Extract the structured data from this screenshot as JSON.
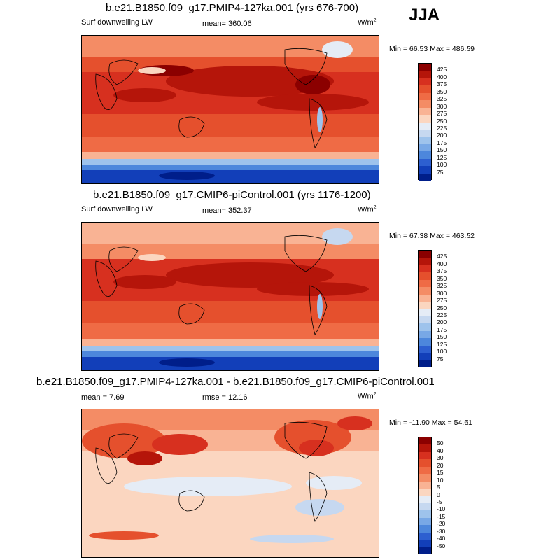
{
  "season": "JJA",
  "panels": [
    {
      "title": "b.e21.B1850.f09_g17.PMIP4-127ka.001 (yrs 676-700)",
      "variable": "Surf downwelling LW",
      "stat_text": "mean= 360.06",
      "units": "W/m",
      "units_sup": "2",
      "minmax": "Min =  66.53 Max = 486.59",
      "kind": "abs"
    },
    {
      "title": "b.e21.B1850.f09_g17.CMIP6-piControl.001 (yrs 1176-1200)",
      "variable": "Surf downwelling LW",
      "stat_text": "mean= 352.37",
      "units": "W/m",
      "units_sup": "2",
      "minmax": "Min =  67.38 Max = 463.52",
      "kind": "abs"
    },
    {
      "title": "b.e21.B1850.f09_g17.PMIP4-127ka.001 - b.e21.B1850.f09_g17.CMIP6-piControl.001",
      "mean_text": "mean =   7.69",
      "rmse_text": "rmse =  12.16",
      "units": "W/m",
      "units_sup": "2",
      "minmax": "Min = -11.90 Max =  54.61",
      "kind": "diff"
    }
  ],
  "colorbar_abs": {
    "labels": [
      "425",
      "400",
      "375",
      "350",
      "325",
      "300",
      "275",
      "250",
      "225",
      "200",
      "175",
      "150",
      "125",
      "100",
      "75"
    ],
    "colors": [
      "#8b0000",
      "#b5150a",
      "#d7301f",
      "#e5502d",
      "#ef6b45",
      "#f48c65",
      "#f9b394",
      "#fbd6c0",
      "#e5ecf6",
      "#c6d8f0",
      "#9ec3ec",
      "#78a8e6",
      "#4d87dc",
      "#2d5fd0",
      "#123fb9",
      "#001e8a"
    ]
  },
  "colorbar_diff": {
    "labels": [
      "50",
      "40",
      "30",
      "20",
      "15",
      "10",
      "5",
      "0",
      "-5",
      "-10",
      "-15",
      "-20",
      "-30",
      "-40",
      "-50"
    ],
    "colors": [
      "#8b0000",
      "#b5150a",
      "#d7301f",
      "#e5502d",
      "#ef6b45",
      "#f48c65",
      "#f9b394",
      "#fbd6c0",
      "#e5ecf6",
      "#c6d8f0",
      "#9ec3ec",
      "#78a8e6",
      "#4d87dc",
      "#2d5fd0",
      "#123fb9",
      "#001e8a"
    ]
  },
  "chart_data": [
    {
      "type": "heatmap",
      "title": "b.e21.B1850.f09_g17.PMIP4-127ka.001 (yrs 676-700)",
      "variable": "Surf downwelling LW",
      "units": "W/m2",
      "season": "JJA",
      "mean": 360.06,
      "min": 66.53,
      "max": 486.59,
      "levels": [
        75,
        100,
        125,
        150,
        175,
        200,
        225,
        250,
        275,
        300,
        325,
        350,
        375,
        400,
        425
      ]
    },
    {
      "type": "heatmap",
      "title": "b.e21.B1850.f09_g17.CMIP6-piControl.001 (yrs 1176-1200)",
      "variable": "Surf downwelling LW",
      "units": "W/m2",
      "season": "JJA",
      "mean": 352.37,
      "min": 67.38,
      "max": 463.52,
      "levels": [
        75,
        100,
        125,
        150,
        175,
        200,
        225,
        250,
        275,
        300,
        325,
        350,
        375,
        400,
        425
      ]
    },
    {
      "type": "heatmap",
      "title": "b.e21.B1850.f09_g17.PMIP4-127ka.001 - b.e21.B1850.f09_g17.CMIP6-piControl.001",
      "units": "W/m2",
      "season": "JJA",
      "mean": 7.69,
      "rmse": 12.16,
      "min": -11.9,
      "max": 54.61,
      "levels": [
        -50,
        -40,
        -30,
        -20,
        -15,
        -10,
        -5,
        0,
        5,
        10,
        15,
        20,
        30,
        40,
        50
      ]
    }
  ]
}
